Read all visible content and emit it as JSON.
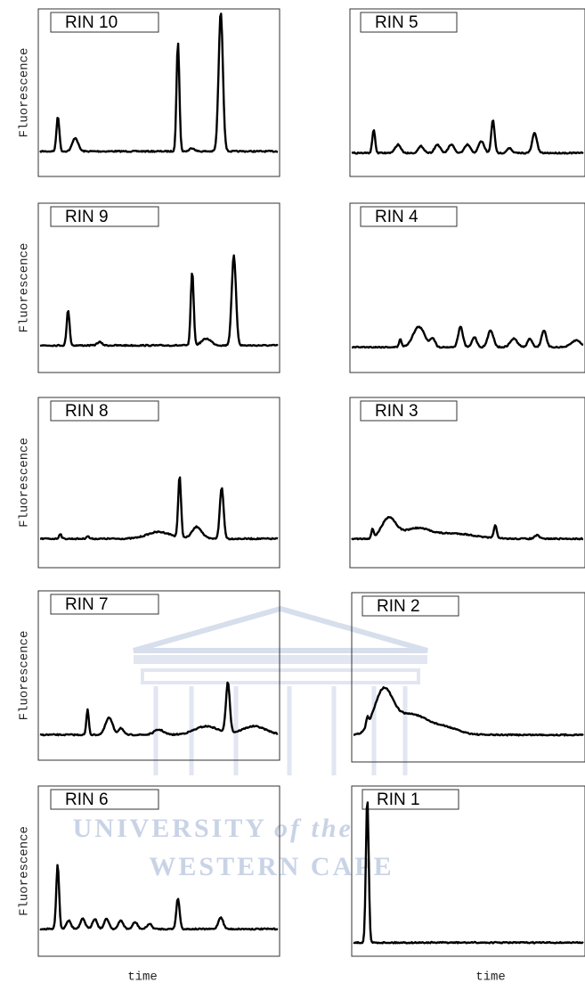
{
  "panels": [
    {
      "label": "RIN 10"
    },
    {
      "label": "RIN 9"
    },
    {
      "label": "RIN 8"
    },
    {
      "label": "RIN 7"
    },
    {
      "label": "RIN 6"
    },
    {
      "label": "RIN 5"
    },
    {
      "label": "RIN 4"
    },
    {
      "label": "RIN 3"
    },
    {
      "label": "RIN 2"
    },
    {
      "label": "RIN 1"
    }
  ],
  "y_label": "Fluorescence",
  "x_label": "time",
  "watermark": {
    "line1": "UNIVERSITY",
    "line1_italic": "of the",
    "line2": "WESTERN CAPE"
  }
}
